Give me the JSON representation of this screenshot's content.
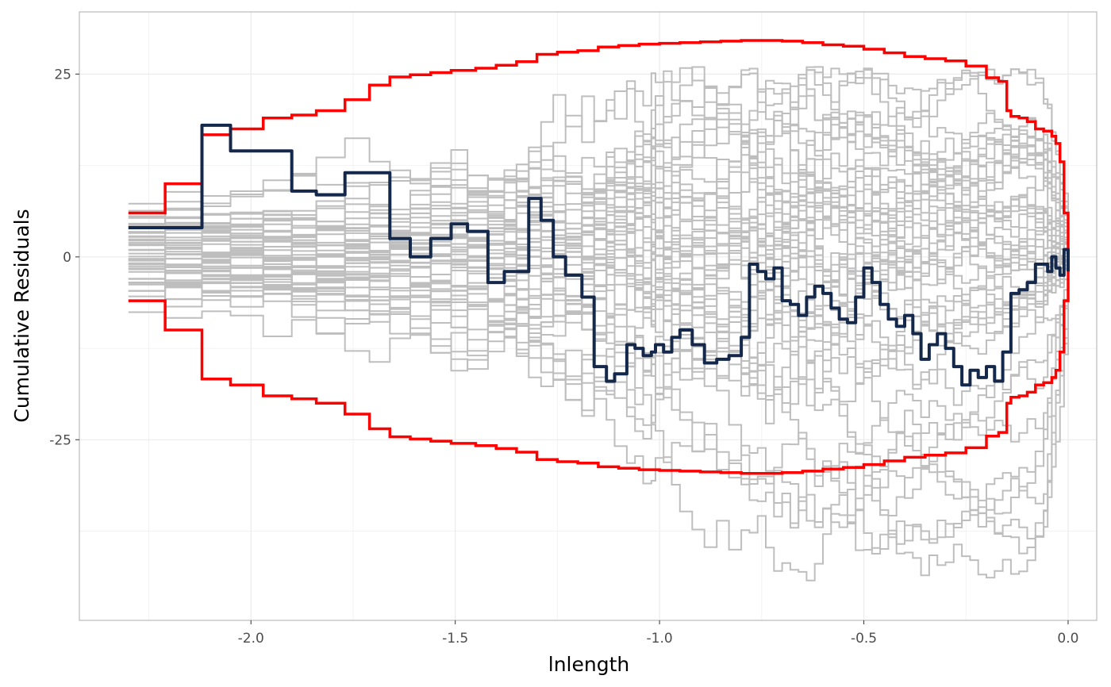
{
  "chart_data": {
    "type": "line",
    "title": "",
    "xlabel": "lnlength",
    "ylabel": "Cumulative Residuals",
    "xlim": [
      -2.42,
      0.07
    ],
    "ylim": [
      -49.7,
      33.5
    ],
    "x_ticks": [
      -2.0,
      -1.5,
      -1.0,
      -0.5,
      0.0
    ],
    "x_tick_labels": [
      "-2.0",
      "-1.5",
      "-1.0",
      "-0.5",
      "0.0"
    ],
    "y_ticks": [
      -25,
      0,
      25
    ],
    "y_tick_labels": [
      "-25",
      "0",
      "25"
    ],
    "grid": true,
    "legend": "none",
    "colors": {
      "observed": "#14284b",
      "envelope": "#ff0000",
      "simulated": "#bebebe",
      "grid": "#ebebeb",
      "panel_border": "#b3b3b3"
    },
    "series": [
      {
        "role": "observed",
        "x": [
          -2.3,
          -2.21,
          -2.12,
          -2.05,
          -1.97,
          -1.9,
          -1.84,
          -1.77,
          -1.71,
          -1.66,
          -1.61,
          -1.56,
          -1.51,
          -1.47,
          -1.42,
          -1.38,
          -1.35,
          -1.32,
          -1.29,
          -1.26,
          -1.23,
          -1.19,
          -1.16,
          -1.13,
          -1.11,
          -1.08,
          -1.06,
          -1.04,
          -1.02,
          -1.01,
          -0.99,
          -0.97,
          -0.95,
          -0.92,
          -0.89,
          -0.86,
          -0.83,
          -0.8,
          -0.78,
          -0.76,
          -0.74,
          -0.72,
          -0.7,
          -0.68,
          -0.66,
          -0.64,
          -0.62,
          -0.6,
          -0.58,
          -0.56,
          -0.54,
          -0.52,
          -0.5,
          -0.48,
          -0.46,
          -0.44,
          -0.42,
          -0.4,
          -0.38,
          -0.36,
          -0.34,
          -0.32,
          -0.3,
          -0.28,
          -0.26,
          -0.24,
          -0.22,
          -0.2,
          -0.18,
          -0.16,
          -0.14,
          -0.12,
          -0.1,
          -0.08,
          -0.06,
          -0.05,
          -0.04,
          -0.03,
          -0.02,
          -0.01,
          0.0
        ],
        "y": [
          4,
          4,
          18,
          14.5,
          14.5,
          9,
          8.5,
          11.5,
          11.5,
          2.5,
          0,
          2.5,
          4.5,
          3.5,
          -3.5,
          -2,
          -2,
          8,
          5,
          0,
          -2.5,
          -5.5,
          -15,
          -17,
          -16,
          -12,
          -12.5,
          -13.5,
          -13,
          -12,
          -13,
          -11,
          -10,
          -12,
          -14.5,
          -14,
          -13.5,
          -11,
          -1,
          -2,
          -3,
          -1.5,
          -6,
          -6.5,
          -8,
          -5.5,
          -4,
          -5,
          -7,
          -8.5,
          -9,
          -5.5,
          -1.5,
          -3.5,
          -6.5,
          -8.5,
          -9.5,
          -8,
          -10.5,
          -14,
          -12,
          -10.5,
          -12.5,
          -15,
          -17.5,
          -15.5,
          -16.5,
          -15,
          -17,
          -13,
          -5,
          -4.5,
          -3.5,
          -1,
          -1,
          -2,
          0,
          -1.5,
          -2.5,
          1,
          -2
        ]
      },
      {
        "role": "envelope-upper",
        "x": [
          -2.3,
          -2.21,
          -2.12,
          -2.05,
          -1.97,
          -1.9,
          -1.84,
          -1.77,
          -1.71,
          -1.66,
          -1.61,
          -1.56,
          -1.51,
          -1.45,
          -1.4,
          -1.35,
          -1.3,
          -1.25,
          -1.2,
          -1.15,
          -1.1,
          -1.05,
          -1.0,
          -0.95,
          -0.9,
          -0.85,
          -0.8,
          -0.75,
          -0.7,
          -0.65,
          -0.6,
          -0.55,
          -0.5,
          -0.45,
          -0.4,
          -0.35,
          -0.3,
          -0.25,
          -0.2,
          -0.17,
          -0.15,
          -0.14,
          -0.12,
          -0.1,
          -0.08,
          -0.06,
          -0.04,
          -0.03,
          -0.02,
          -0.01,
          0.0
        ],
        "y": [
          6,
          10,
          16.7,
          17.5,
          19,
          19.4,
          20,
          21.5,
          23.5,
          24.6,
          24.9,
          25.2,
          25.5,
          25.8,
          26.2,
          26.7,
          27.7,
          28,
          28.2,
          28.7,
          28.9,
          29.1,
          29.2,
          29.3,
          29.4,
          29.5,
          29.6,
          29.6,
          29.5,
          29.3,
          29.0,
          28.8,
          28.4,
          27.9,
          27.4,
          27.1,
          26.8,
          26.1,
          24.5,
          24,
          20,
          19.2,
          19,
          18.5,
          17.5,
          17.2,
          16.5,
          15.5,
          13,
          6,
          0
        ]
      },
      {
        "role": "envelope-lower",
        "x": [
          -2.3,
          -2.21,
          -2.12,
          -2.05,
          -1.97,
          -1.9,
          -1.84,
          -1.77,
          -1.71,
          -1.66,
          -1.61,
          -1.56,
          -1.51,
          -1.45,
          -1.4,
          -1.35,
          -1.3,
          -1.25,
          -1.2,
          -1.15,
          -1.1,
          -1.05,
          -1.0,
          -0.95,
          -0.9,
          -0.85,
          -0.8,
          -0.75,
          -0.7,
          -0.65,
          -0.6,
          -0.55,
          -0.5,
          -0.45,
          -0.4,
          -0.35,
          -0.3,
          -0.25,
          -0.2,
          -0.17,
          -0.15,
          -0.14,
          -0.12,
          -0.1,
          -0.08,
          -0.06,
          -0.04,
          -0.03,
          -0.02,
          -0.01,
          0.0
        ],
        "y": [
          -6,
          -10,
          -16.7,
          -17.5,
          -19,
          -19.4,
          -20,
          -21.5,
          -23.5,
          -24.6,
          -24.9,
          -25.2,
          -25.5,
          -25.8,
          -26.2,
          -26.7,
          -27.7,
          -28,
          -28.2,
          -28.7,
          -28.9,
          -29.1,
          -29.2,
          -29.3,
          -29.4,
          -29.5,
          -29.6,
          -29.6,
          -29.5,
          -29.3,
          -29.0,
          -28.8,
          -28.4,
          -27.9,
          -27.4,
          -27.1,
          -26.8,
          -26.1,
          -24.5,
          -24,
          -20,
          -19.2,
          -19,
          -18.5,
          -17.5,
          -17.2,
          -16.5,
          -15.5,
          -13,
          -6,
          0
        ]
      }
    ],
    "simulated_paths": {
      "count": 50,
      "note": "simulated cumulative residual paths under the null model",
      "range_y": [
        -46,
        26
      ]
    }
  }
}
